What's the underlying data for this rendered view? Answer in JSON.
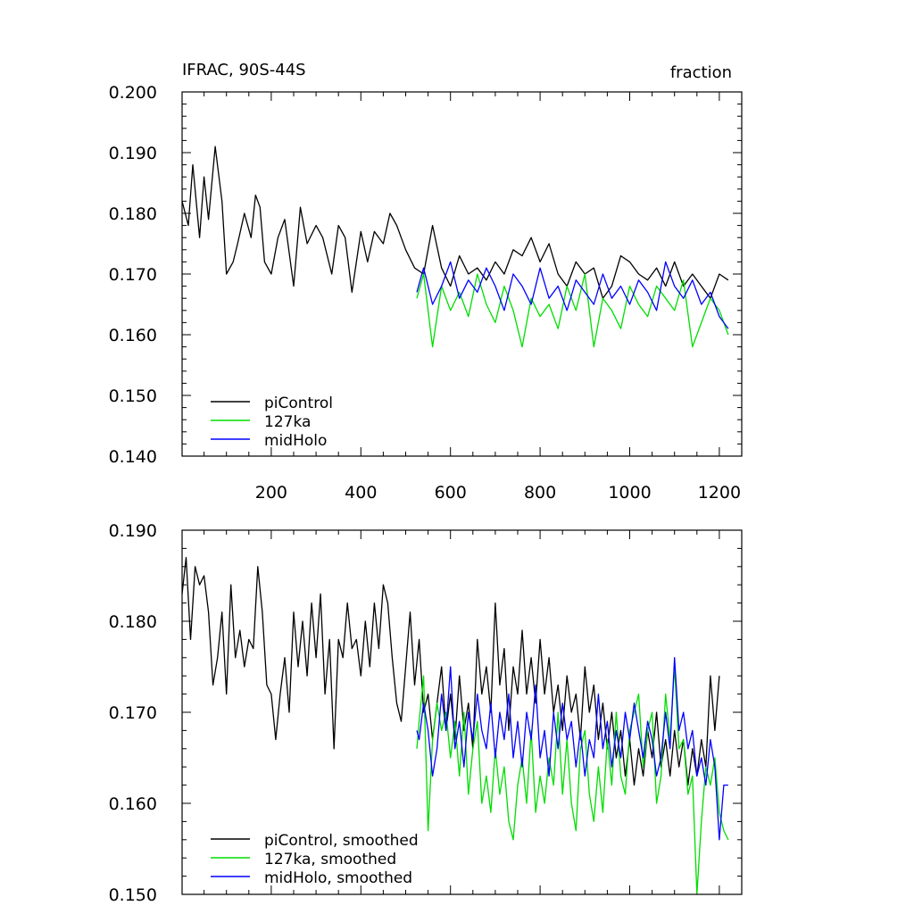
{
  "colors": {
    "piControl": "#000000",
    "127ka": "#00dd00",
    "midHolo": "#0000ff"
  },
  "chart_data": [
    {
      "type": "line",
      "title": "IFRAC, 90S-44S",
      "units": "fraction",
      "xlim": [
        1,
        1250
      ],
      "ylim": [
        0.14,
        0.2
      ],
      "x_ticks": [
        200,
        400,
        600,
        800,
        1000,
        1200
      ],
      "x_tick_labels": [
        "200",
        "400",
        "600",
        "800",
        "1000",
        "1200"
      ],
      "y_ticks": [
        0.14,
        0.15,
        0.16,
        0.17,
        0.18,
        0.19,
        0.2
      ],
      "y_tick_labels": [
        "0.140",
        "0.150",
        "0.160",
        "0.170",
        "0.180",
        "0.190",
        "0.200"
      ],
      "legend": {
        "position": "bottom-left",
        "entries": [
          "piControl",
          "127ka",
          "midHolo"
        ]
      },
      "series": [
        {
          "name": "piControl",
          "color": "#000000",
          "x": [
            1,
            15,
            25,
            40,
            50,
            60,
            75,
            90,
            100,
            115,
            125,
            140,
            155,
            165,
            175,
            185,
            200,
            215,
            230,
            250,
            265,
            280,
            300,
            315,
            335,
            350,
            365,
            380,
            400,
            415,
            430,
            450,
            465,
            480,
            500,
            520,
            540,
            560,
            580,
            600,
            620,
            640,
            660,
            680,
            700,
            720,
            740,
            760,
            780,
            800,
            820,
            840,
            860,
            880,
            900,
            920,
            940,
            960,
            980,
            1000,
            1020,
            1040,
            1060,
            1080,
            1100,
            1120,
            1140,
            1160,
            1180,
            1200,
            1220
          ],
          "y": [
            0.182,
            0.178,
            0.188,
            0.176,
            0.186,
            0.179,
            0.191,
            0.182,
            0.17,
            0.172,
            0.175,
            0.18,
            0.176,
            0.183,
            0.181,
            0.172,
            0.17,
            0.176,
            0.179,
            0.168,
            0.181,
            0.175,
            0.178,
            0.176,
            0.17,
            0.178,
            0.176,
            0.167,
            0.177,
            0.172,
            0.177,
            0.175,
            0.18,
            0.178,
            0.174,
            0.171,
            0.17,
            0.178,
            0.171,
            0.168,
            0.173,
            0.17,
            0.171,
            0.169,
            0.172,
            0.17,
            0.174,
            0.173,
            0.176,
            0.172,
            0.175,
            0.17,
            0.168,
            0.172,
            0.17,
            0.171,
            0.166,
            0.168,
            0.173,
            0.172,
            0.17,
            0.169,
            0.171,
            0.168,
            0.172,
            0.168,
            0.17,
            0.168,
            0.166,
            0.17,
            0.169
          ]
        },
        {
          "name": "127ka",
          "color": "#00dd00",
          "x": [
            525,
            540,
            560,
            580,
            600,
            620,
            640,
            660,
            680,
            700,
            720,
            740,
            760,
            780,
            800,
            820,
            840,
            860,
            880,
            900,
            920,
            940,
            960,
            980,
            1000,
            1020,
            1040,
            1060,
            1080,
            1100,
            1120,
            1140,
            1160,
            1180,
            1200,
            1220
          ],
          "y": [
            0.166,
            0.17,
            0.158,
            0.168,
            0.164,
            0.167,
            0.163,
            0.17,
            0.165,
            0.162,
            0.168,
            0.164,
            0.158,
            0.166,
            0.163,
            0.165,
            0.161,
            0.168,
            0.164,
            0.17,
            0.158,
            0.166,
            0.164,
            0.161,
            0.168,
            0.165,
            0.163,
            0.168,
            0.166,
            0.164,
            0.169,
            0.158,
            0.162,
            0.166,
            0.164,
            0.16
          ]
        },
        {
          "name": "midHolo",
          "color": "#0000ff",
          "x": [
            525,
            540,
            560,
            580,
            600,
            620,
            640,
            660,
            680,
            700,
            720,
            740,
            760,
            780,
            800,
            820,
            840,
            860,
            880,
            900,
            920,
            940,
            960,
            980,
            1000,
            1020,
            1040,
            1060,
            1080,
            1100,
            1120,
            1140,
            1160,
            1180,
            1200,
            1220
          ],
          "y": [
            0.167,
            0.171,
            0.165,
            0.168,
            0.172,
            0.166,
            0.169,
            0.167,
            0.171,
            0.168,
            0.164,
            0.17,
            0.168,
            0.165,
            0.171,
            0.166,
            0.168,
            0.164,
            0.169,
            0.167,
            0.165,
            0.17,
            0.166,
            0.168,
            0.165,
            0.169,
            0.167,
            0.164,
            0.172,
            0.168,
            0.166,
            0.169,
            0.165,
            0.167,
            0.163,
            0.161
          ]
        }
      ]
    },
    {
      "type": "line",
      "title": "",
      "units": "",
      "xlim": [
        1,
        1250
      ],
      "ylim": [
        0.15,
        0.19
      ],
      "x_ticks": [
        200,
        400,
        600,
        800,
        1000,
        1200
      ],
      "x_tick_labels": [],
      "y_ticks": [
        0.15,
        0.16,
        0.17,
        0.18,
        0.19
      ],
      "y_tick_labels": [
        "0.150",
        "0.160",
        "0.170",
        "0.180",
        "0.190"
      ],
      "legend": {
        "position": "bottom-left",
        "entries": [
          "piControl, smoothed",
          "127ka, smoothed",
          "midHolo, smoothed"
        ]
      },
      "series": [
        {
          "name": "piControl, smoothed",
          "color": "#000000",
          "x": [
            1,
            10,
            20,
            30,
            40,
            50,
            60,
            70,
            80,
            90,
            100,
            110,
            120,
            130,
            140,
            150,
            160,
            170,
            180,
            190,
            200,
            210,
            220,
            230,
            240,
            250,
            260,
            270,
            280,
            290,
            300,
            310,
            320,
            330,
            340,
            350,
            360,
            370,
            380,
            390,
            400,
            410,
            420,
            430,
            440,
            450,
            460,
            470,
            480,
            490,
            500,
            510,
            520,
            530,
            540,
            550,
            560,
            570,
            580,
            590,
            600,
            610,
            620,
            630,
            640,
            650,
            660,
            670,
            680,
            690,
            700,
            710,
            720,
            730,
            740,
            750,
            760,
            770,
            780,
            790,
            800,
            810,
            820,
            830,
            840,
            850,
            860,
            870,
            880,
            890,
            900,
            910,
            920,
            930,
            940,
            950,
            960,
            970,
            980,
            990,
            1000,
            1010,
            1020,
            1030,
            1040,
            1050,
            1060,
            1070,
            1080,
            1090,
            1100,
            1110,
            1120,
            1130,
            1140,
            1150,
            1160,
            1170,
            1180,
            1190,
            1200
          ],
          "y": [
            0.183,
            0.187,
            0.178,
            0.186,
            0.184,
            0.185,
            0.181,
            0.173,
            0.176,
            0.181,
            0.172,
            0.184,
            0.176,
            0.179,
            0.175,
            0.178,
            0.177,
            0.186,
            0.181,
            0.173,
            0.172,
            0.167,
            0.172,
            0.176,
            0.17,
            0.181,
            0.175,
            0.18,
            0.174,
            0.182,
            0.176,
            0.183,
            0.172,
            0.178,
            0.166,
            0.178,
            0.176,
            0.182,
            0.177,
            0.178,
            0.174,
            0.18,
            0.175,
            0.182,
            0.177,
            0.184,
            0.182,
            0.176,
            0.171,
            0.169,
            0.175,
            0.181,
            0.173,
            0.178,
            0.17,
            0.172,
            0.167,
            0.171,
            0.175,
            0.168,
            0.172,
            0.167,
            0.174,
            0.168,
            0.171,
            0.166,
            0.178,
            0.172,
            0.175,
            0.17,
            0.182,
            0.173,
            0.177,
            0.168,
            0.175,
            0.172,
            0.179,
            0.172,
            0.176,
            0.171,
            0.178,
            0.172,
            0.176,
            0.17,
            0.173,
            0.168,
            0.174,
            0.17,
            0.172,
            0.167,
            0.175,
            0.17,
            0.173,
            0.167,
            0.171,
            0.166,
            0.17,
            0.165,
            0.168,
            0.163,
            0.167,
            0.162,
            0.166,
            0.163,
            0.168,
            0.165,
            0.17,
            0.164,
            0.167,
            0.163,
            0.168,
            0.164,
            0.167,
            0.162,
            0.166,
            0.163,
            0.167,
            0.164,
            0.174,
            0.168,
            0.174
          ]
        },
        {
          "name": "127ka, smoothed",
          "color": "#00dd00",
          "x": [
            525,
            530,
            540,
            550,
            560,
            570,
            580,
            590,
            600,
            610,
            620,
            630,
            640,
            650,
            660,
            670,
            680,
            690,
            700,
            710,
            720,
            730,
            740,
            750,
            760,
            770,
            780,
            790,
            800,
            810,
            820,
            830,
            840,
            850,
            860,
            870,
            880,
            890,
            900,
            910,
            920,
            930,
            940,
            950,
            960,
            970,
            980,
            990,
            1000,
            1010,
            1020,
            1030,
            1040,
            1050,
            1060,
            1070,
            1080,
            1090,
            1100,
            1110,
            1120,
            1130,
            1140,
            1150,
            1160,
            1170,
            1180,
            1190,
            1200,
            1210,
            1220
          ],
          "y": [
            0.166,
            0.169,
            0.174,
            0.157,
            0.167,
            0.171,
            0.168,
            0.17,
            0.165,
            0.169,
            0.163,
            0.17,
            0.161,
            0.166,
            0.169,
            0.16,
            0.163,
            0.159,
            0.166,
            0.161,
            0.164,
            0.158,
            0.156,
            0.162,
            0.165,
            0.16,
            0.168,
            0.159,
            0.163,
            0.16,
            0.165,
            0.162,
            0.17,
            0.161,
            0.167,
            0.16,
            0.157,
            0.166,
            0.168,
            0.161,
            0.158,
            0.164,
            0.159,
            0.167,
            0.162,
            0.17,
            0.163,
            0.161,
            0.168,
            0.17,
            0.172,
            0.164,
            0.168,
            0.17,
            0.16,
            0.163,
            0.172,
            0.167,
            0.175,
            0.166,
            0.167,
            0.161,
            0.163,
            0.15,
            0.158,
            0.164,
            0.162,
            0.165,
            0.159,
            0.157,
            0.156
          ]
        },
        {
          "name": "midHolo, smoothed",
          "color": "#0000ff",
          "x": [
            525,
            530,
            540,
            550,
            560,
            570,
            580,
            590,
            600,
            610,
            620,
            630,
            640,
            650,
            660,
            670,
            680,
            690,
            700,
            710,
            720,
            730,
            740,
            750,
            760,
            770,
            780,
            790,
            800,
            810,
            820,
            830,
            840,
            850,
            860,
            870,
            880,
            890,
            900,
            910,
            920,
            930,
            940,
            950,
            960,
            970,
            980,
            990,
            1000,
            1010,
            1020,
            1030,
            1040,
            1050,
            1060,
            1070,
            1080,
            1090,
            1100,
            1110,
            1120,
            1130,
            1140,
            1150,
            1160,
            1170,
            1180,
            1190,
            1200,
            1210,
            1220
          ],
          "y": [
            0.168,
            0.167,
            0.171,
            0.168,
            0.163,
            0.166,
            0.172,
            0.168,
            0.175,
            0.166,
            0.169,
            0.164,
            0.17,
            0.167,
            0.172,
            0.168,
            0.166,
            0.171,
            0.165,
            0.17,
            0.167,
            0.172,
            0.165,
            0.169,
            0.164,
            0.17,
            0.167,
            0.173,
            0.165,
            0.168,
            0.163,
            0.17,
            0.166,
            0.171,
            0.167,
            0.169,
            0.164,
            0.168,
            0.163,
            0.167,
            0.165,
            0.172,
            0.166,
            0.169,
            0.164,
            0.168,
            0.165,
            0.17,
            0.167,
            0.171,
            0.168,
            0.165,
            0.169,
            0.167,
            0.163,
            0.165,
            0.17,
            0.166,
            0.176,
            0.168,
            0.17,
            0.166,
            0.168,
            0.163,
            0.165,
            0.162,
            0.167,
            0.164,
            0.156,
            0.162,
            0.162
          ]
        }
      ]
    }
  ]
}
